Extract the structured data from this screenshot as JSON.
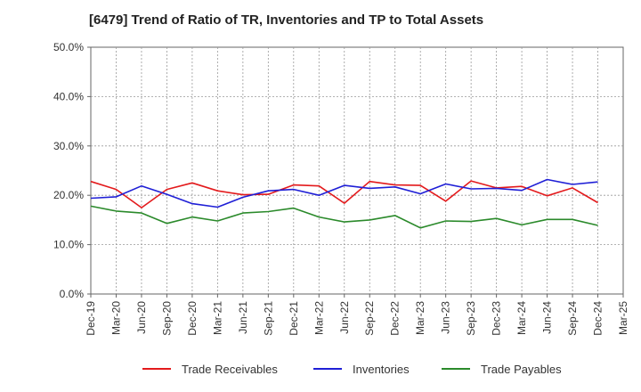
{
  "chart_data": {
    "type": "line",
    "title": "[6479]  Trend of Ratio of TR, Inventories and TP to Total Assets",
    "xlabel": "",
    "ylabel": "",
    "ylim": [
      0,
      50
    ],
    "yticks": [
      "0.0%",
      "10.0%",
      "20.0%",
      "30.0%",
      "40.0%",
      "50.0%"
    ],
    "xtick_labels": [
      "Dec-19",
      "Mar-20",
      "Jun-20",
      "Sep-20",
      "Dec-20",
      "Mar-21",
      "Jun-21",
      "Sep-21",
      "Dec-21",
      "Mar-22",
      "Jun-22",
      "Sep-22",
      "Dec-22",
      "Mar-23",
      "Jun-23",
      "Sep-23",
      "Dec-23",
      "Mar-24",
      "Jun-24",
      "Sep-24",
      "Dec-24",
      "Mar-25"
    ],
    "x": [
      "Dec-19",
      "Mar-20",
      "Jun-20",
      "Sep-20",
      "Dec-20",
      "Mar-21",
      "Jun-21",
      "Sep-21",
      "Dec-21",
      "Mar-22",
      "Jun-22",
      "Sep-22",
      "Dec-22",
      "Mar-23",
      "Jun-23",
      "Sep-23",
      "Dec-23",
      "Mar-24",
      "Jun-24",
      "Sep-24",
      "Dec-24"
    ],
    "grid": true,
    "legend_position": "bottom",
    "series": [
      {
        "name": "Trade Receivables",
        "color": "#e31a1c",
        "values": [
          22.8,
          21.2,
          17.5,
          21.2,
          22.5,
          20.9,
          20.1,
          20.2,
          22.1,
          21.9,
          18.4,
          22.8,
          22.1,
          22.0,
          18.8,
          22.9,
          21.5,
          21.8,
          19.9,
          21.5,
          18.5
        ]
      },
      {
        "name": "Inventories",
        "color": "#1f1fd6",
        "values": [
          19.4,
          19.7,
          21.9,
          20.2,
          18.3,
          17.6,
          19.6,
          20.9,
          21.2,
          20.0,
          22.0,
          21.4,
          21.7,
          20.3,
          22.3,
          21.3,
          21.4,
          21.0,
          23.2,
          22.2,
          22.7
        ]
      },
      {
        "name": "Trade Payables",
        "color": "#2b8a2b",
        "values": [
          17.8,
          16.8,
          16.4,
          14.3,
          15.6,
          14.8,
          16.4,
          16.7,
          17.4,
          15.6,
          14.6,
          15.0,
          15.9,
          13.4,
          14.8,
          14.7,
          15.3,
          14.0,
          15.1,
          15.1,
          13.9
        ]
      }
    ]
  }
}
